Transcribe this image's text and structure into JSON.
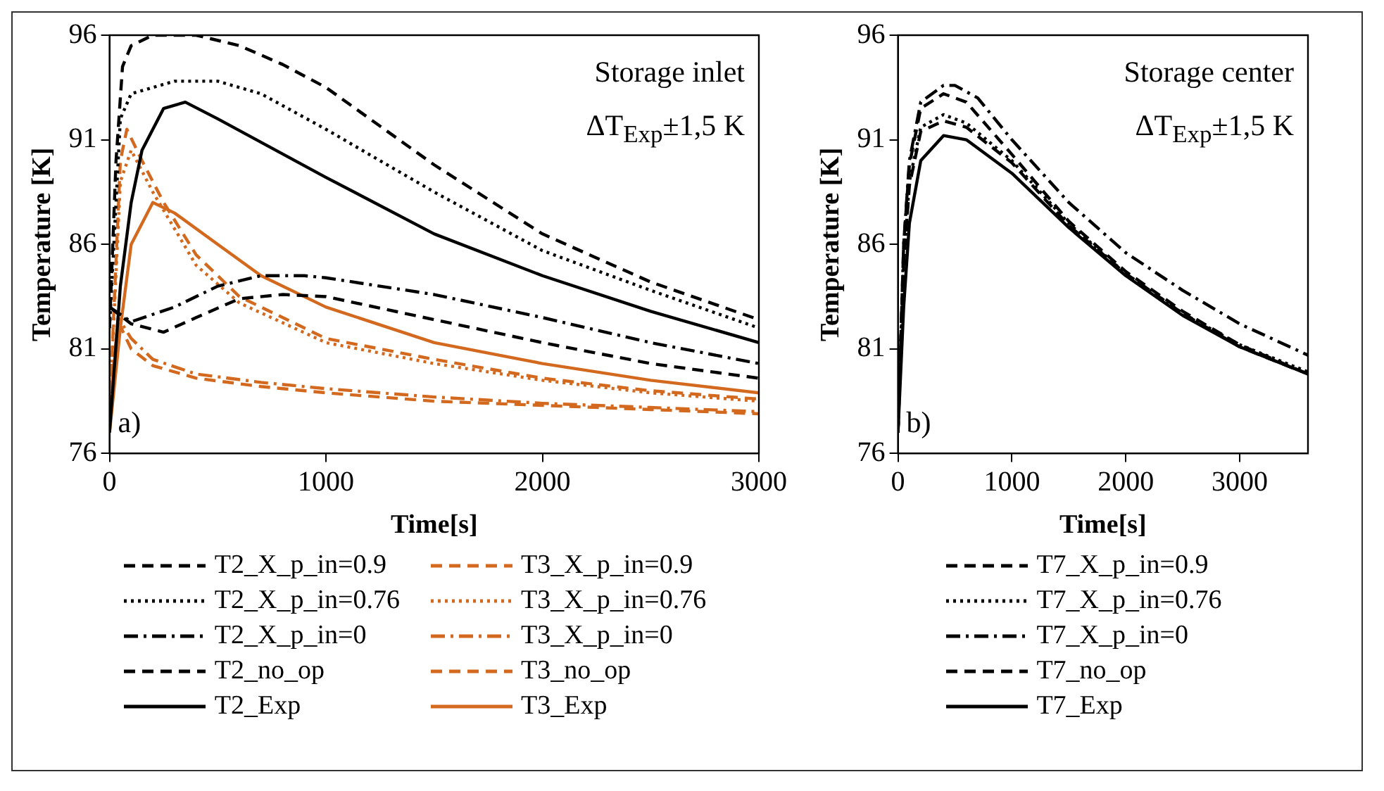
{
  "chart_data": [
    {
      "type": "line",
      "xlabel": "Time[s]",
      "ylabel": "Temperature [K]",
      "annotations": [
        "Storage inlet",
        "ΔT$_{Exp}$±1,5 K",
        "a)"
      ],
      "xlim": [
        0,
        3000
      ],
      "ylim": [
        76,
        96
      ],
      "xticks": [
        0,
        1000,
        2000,
        3000
      ],
      "yticks": [
        76,
        81,
        86,
        91,
        96
      ],
      "grid": false,
      "legend": "bottom",
      "series": [
        {
          "name": "T2_X_p_in=0.9",
          "color": "#000000",
          "line_style": "dashed",
          "x": [
            0,
            30,
            60,
            100,
            200,
            400,
            600,
            800,
            1000,
            1500,
            2000,
            2500,
            3000
          ],
          "values": [
            82,
            90,
            94.5,
            95.5,
            96,
            96,
            95.5,
            94.6,
            93.5,
            89.8,
            86.5,
            84.2,
            82.4
          ]
        },
        {
          "name": "T2_X_p_in=0.76",
          "color": "#000000",
          "line_style": "dotted",
          "x": [
            0,
            50,
            100,
            300,
            500,
            700,
            1000,
            1500,
            2000,
            2500,
            3000
          ],
          "values": [
            82,
            92,
            93.2,
            93.8,
            93.8,
            93.2,
            91.5,
            88.5,
            85.7,
            83.8,
            82
          ]
        },
        {
          "name": "T2_X_p_in=0",
          "color": "#000000",
          "line_style": "dashdot",
          "x": [
            0,
            100,
            300,
            500,
            700,
            900,
            1000,
            1500,
            2000,
            2500,
            3000
          ],
          "values": [
            83,
            82.3,
            83,
            84,
            84.5,
            84.5,
            84.4,
            83.6,
            82.5,
            81.3,
            80.3
          ]
        },
        {
          "name": "T2_no_op",
          "color": "#000000",
          "line_style": "dashed",
          "x": [
            0,
            100,
            250,
            400,
            600,
            800,
            1000,
            1500,
            2000,
            2500,
            3000
          ],
          "values": [
            83,
            82.2,
            81.8,
            82.5,
            83.4,
            83.6,
            83.5,
            82.4,
            81.3,
            80.3,
            79.6
          ]
        },
        {
          "name": "T2_Exp",
          "color": "#000000",
          "line_style": "solid",
          "x": [
            0,
            50,
            100,
            150,
            250,
            350,
            500,
            1000,
            1500,
            2000,
            2500,
            3000
          ],
          "values": [
            77,
            84,
            88,
            90.5,
            92.5,
            92.8,
            92,
            89.2,
            86.5,
            84.5,
            82.8,
            81.3
          ]
        },
        {
          "name": "T3_X_p_in=0.9",
          "color": "#d2691e",
          "line_style": "dashed",
          "x": [
            0,
            50,
            80,
            150,
            250,
            400,
            600,
            1000,
            1500,
            2000,
            2500,
            3000
          ],
          "values": [
            78,
            90,
            91.5,
            90,
            88,
            85.5,
            83.5,
            81.5,
            80.5,
            79.6,
            79,
            78.6
          ]
        },
        {
          "name": "T3_X_p_in=0.76",
          "color": "#d2691e",
          "line_style": "dotted",
          "x": [
            0,
            50,
            100,
            200,
            400,
            600,
            1000,
            1500,
            2000,
            2500,
            3000
          ],
          "values": [
            78,
            89,
            90.5,
            88.5,
            85,
            83.2,
            81.3,
            80.3,
            79.5,
            78.9,
            78.5
          ]
        },
        {
          "name": "T3_X_p_in=0",
          "color": "#d2691e",
          "line_style": "dashdot",
          "x": [
            0,
            40,
            100,
            200,
            400,
            700,
            1000,
            1500,
            2000,
            2500,
            3000
          ],
          "values": [
            78,
            82.5,
            81.5,
            80.5,
            79.8,
            79.4,
            79.1,
            78.7,
            78.4,
            78.2,
            78
          ]
        },
        {
          "name": "T3_no_op",
          "color": "#d2691e",
          "line_style": "dashed",
          "x": [
            0,
            40,
            100,
            200,
            400,
            700,
            1000,
            1500,
            2000,
            2500,
            3000
          ],
          "values": [
            78,
            82.3,
            81,
            80.2,
            79.6,
            79.2,
            78.9,
            78.5,
            78.3,
            78.1,
            77.9
          ]
        },
        {
          "name": "T3_Exp",
          "color": "#d2691e",
          "line_style": "solid",
          "x": [
            0,
            50,
            100,
            200,
            300,
            500,
            700,
            1000,
            1500,
            2000,
            2500,
            3000
          ],
          "values": [
            77,
            82,
            86,
            88,
            87.5,
            86,
            84.5,
            83,
            81.3,
            80.3,
            79.5,
            78.9
          ]
        }
      ]
    },
    {
      "type": "line",
      "xlabel": "Time[s]",
      "ylabel": "Temperature [K]",
      "annotations": [
        "Storage center",
        "ΔT$_{Exp}$±1,5 K",
        "b)"
      ],
      "xlim": [
        0,
        3600
      ],
      "ylim": [
        76,
        96
      ],
      "xticks": [
        0,
        1000,
        2000,
        3000
      ],
      "yticks": [
        76,
        81,
        86,
        91,
        96
      ],
      "grid": false,
      "legend": "bottom",
      "series": [
        {
          "name": "T7_X_p_in=0.9",
          "color": "#000000",
          "line_style": "dashed",
          "x": [
            0,
            50,
            100,
            200,
            400,
            600,
            1000,
            1500,
            2000,
            2500,
            3000,
            3600
          ],
          "values": [
            77,
            86,
            89.8,
            92.5,
            93.2,
            92.8,
            90.3,
            87.1,
            84.7,
            82.8,
            81.2,
            79.8
          ]
        },
        {
          "name": "T7_X_p_in=0.76",
          "color": "#000000",
          "line_style": "dotted",
          "x": [
            0,
            50,
            100,
            200,
            400,
            600,
            1000,
            1500,
            2000,
            2500,
            3000,
            3600
          ],
          "values": [
            77,
            85,
            89,
            91.6,
            92.2,
            91.8,
            90,
            87,
            84.6,
            82.7,
            81.2,
            79.9
          ]
        },
        {
          "name": "T7_X_p_in=0",
          "color": "#000000",
          "line_style": "dashdot",
          "x": [
            0,
            50,
            100,
            200,
            400,
            500,
            700,
            1000,
            1500,
            2000,
            2500,
            3000,
            3600
          ],
          "values": [
            77,
            86,
            90,
            92.8,
            93.6,
            93.6,
            93,
            91,
            88,
            85.6,
            83.8,
            82.2,
            80.7
          ]
        },
        {
          "name": "T7_no_op",
          "color": "#000000",
          "line_style": "dashed",
          "x": [
            0,
            50,
            100,
            200,
            400,
            600,
            1000,
            1500,
            2000,
            2500,
            3000,
            3600
          ],
          "values": [
            77,
            85,
            88.8,
            91.4,
            91.9,
            91.6,
            89.9,
            86.9,
            84.6,
            82.7,
            81.1,
            79.8
          ]
        },
        {
          "name": "T7_Exp",
          "color": "#000000",
          "line_style": "solid",
          "x": [
            0,
            50,
            100,
            200,
            400,
            600,
            1000,
            1500,
            2000,
            2500,
            3000,
            3600
          ],
          "values": [
            77,
            83,
            87,
            90,
            91.2,
            91,
            89.4,
            86.8,
            84.5,
            82.6,
            81.1,
            79.8
          ]
        }
      ]
    }
  ]
}
